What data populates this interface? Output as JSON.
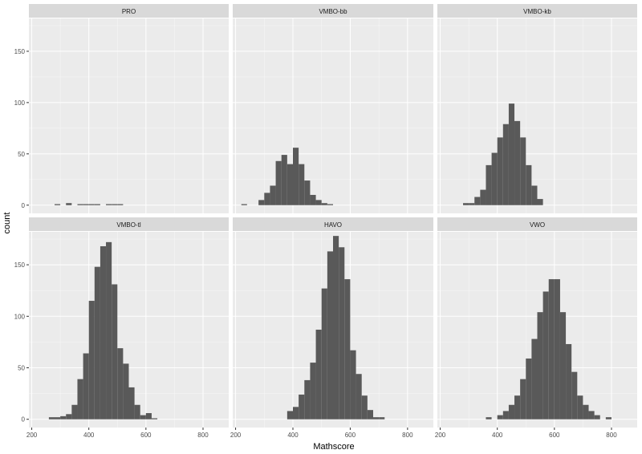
{
  "chart_data": {
    "type": "bar",
    "subtype": "faceted-histogram",
    "xlabel": "Mathscore",
    "ylabel": "count",
    "xlim": [
      190,
      890
    ],
    "ylim": [
      -8,
      182
    ],
    "x_ticks": [
      200,
      400,
      600,
      800
    ],
    "y_ticks": [
      0,
      50,
      100,
      150
    ],
    "bin_width": 20,
    "grid": true,
    "layout": "2x3",
    "panels": [
      {
        "name": "PRO",
        "bins": [
          [
            290,
            1
          ],
          [
            330,
            2
          ],
          [
            370,
            1
          ],
          [
            390,
            1
          ],
          [
            410,
            1
          ],
          [
            430,
            1
          ],
          [
            470,
            1
          ],
          [
            490,
            1
          ],
          [
            510,
            1
          ]
        ]
      },
      {
        "name": "VMBO-bb",
        "bins": [
          [
            230,
            1
          ],
          [
            290,
            5
          ],
          [
            310,
            12
          ],
          [
            330,
            19
          ],
          [
            350,
            43
          ],
          [
            370,
            49
          ],
          [
            390,
            40
          ],
          [
            410,
            56
          ],
          [
            430,
            40
          ],
          [
            450,
            24
          ],
          [
            470,
            10
          ],
          [
            490,
            5
          ],
          [
            510,
            2
          ],
          [
            530,
            1
          ]
        ]
      },
      {
        "name": "VMBO-kb",
        "bins": [
          [
            290,
            2
          ],
          [
            310,
            2
          ],
          [
            330,
            8
          ],
          [
            350,
            15
          ],
          [
            370,
            39
          ],
          [
            390,
            51
          ],
          [
            410,
            66
          ],
          [
            430,
            79
          ],
          [
            450,
            99
          ],
          [
            470,
            82
          ],
          [
            490,
            66
          ],
          [
            510,
            39
          ],
          [
            530,
            19
          ],
          [
            550,
            6
          ]
        ]
      },
      {
        "name": "VMBO-tl",
        "bins": [
          [
            270,
            2
          ],
          [
            290,
            2
          ],
          [
            310,
            3
          ],
          [
            330,
            5
          ],
          [
            350,
            14
          ],
          [
            370,
            39
          ],
          [
            390,
            64
          ],
          [
            410,
            115
          ],
          [
            430,
            148
          ],
          [
            450,
            168
          ],
          [
            470,
            172
          ],
          [
            490,
            131
          ],
          [
            510,
            69
          ],
          [
            530,
            54
          ],
          [
            550,
            31
          ],
          [
            570,
            14
          ],
          [
            590,
            4
          ],
          [
            610,
            6
          ],
          [
            630,
            1
          ]
        ]
      },
      {
        "name": "HAVO",
        "bins": [
          [
            390,
            8
          ],
          [
            410,
            12
          ],
          [
            430,
            24
          ],
          [
            450,
            38
          ],
          [
            470,
            55
          ],
          [
            490,
            87
          ],
          [
            510,
            127
          ],
          [
            530,
            163
          ],
          [
            550,
            178
          ],
          [
            570,
            167
          ],
          [
            590,
            136
          ],
          [
            610,
            67
          ],
          [
            630,
            44
          ],
          [
            650,
            23
          ],
          [
            670,
            9
          ],
          [
            690,
            2
          ],
          [
            710,
            2
          ]
        ]
      },
      {
        "name": "VWO",
        "bins": [
          [
            370,
            2
          ],
          [
            410,
            4
          ],
          [
            430,
            8
          ],
          [
            450,
            14
          ],
          [
            470,
            23
          ],
          [
            490,
            39
          ],
          [
            510,
            59
          ],
          [
            530,
            78
          ],
          [
            550,
            104
          ],
          [
            570,
            124
          ],
          [
            590,
            136
          ],
          [
            610,
            136
          ],
          [
            630,
            104
          ],
          [
            650,
            73
          ],
          [
            670,
            46
          ],
          [
            690,
            23
          ],
          [
            710,
            14
          ],
          [
            730,
            8
          ],
          [
            750,
            4
          ],
          [
            790,
            2
          ]
        ]
      }
    ]
  }
}
